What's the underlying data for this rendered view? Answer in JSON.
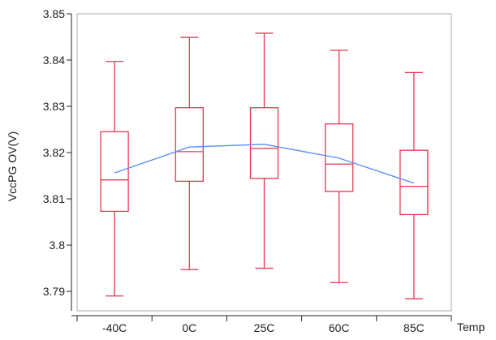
{
  "chart_data": {
    "type": "box",
    "xlabel": "Temp",
    "ylabel": "VccPG OV(V)",
    "ylim": [
      3.7858,
      3.85
    ],
    "yticks": [
      3.79,
      3.8,
      3.81,
      3.82,
      3.83,
      3.84,
      3.85
    ],
    "ytick_labels": [
      "3.79",
      "3.8",
      "3.81",
      "3.82",
      "3.83",
      "3.84",
      "3.85"
    ],
    "categories": [
      "-40C",
      "0C",
      "25C",
      "60C",
      "85C"
    ],
    "boxes": [
      {
        "category": "-40C",
        "min": 3.789,
        "q1": 3.8073,
        "median": 3.8141,
        "q3": 3.8245,
        "max": 3.8397
      },
      {
        "category": "0C",
        "min": 3.7947,
        "q1": 3.8138,
        "median": 3.8202,
        "q3": 3.8297,
        "max": 3.8449
      },
      {
        "category": "25C",
        "min": 3.795,
        "q1": 3.8144,
        "median": 3.8209,
        "q3": 3.8297,
        "max": 3.8458
      },
      {
        "category": "60C",
        "min": 3.7919,
        "q1": 3.8116,
        "median": 3.8175,
        "q3": 3.8262,
        "max": 3.8421
      },
      {
        "category": "85C",
        "min": 3.7884,
        "q1": 3.8066,
        "median": 3.8127,
        "q3": 3.8205,
        "max": 3.8373
      }
    ],
    "mean_line": {
      "values": [
        3.8156,
        3.8212,
        3.8218,
        3.8188,
        3.8134
      ]
    },
    "grid": false,
    "colors": {
      "box": "#e8384f",
      "mean_line": "#5b8ff0",
      "frame": "#a8a8a8",
      "axis": "#222222"
    }
  }
}
